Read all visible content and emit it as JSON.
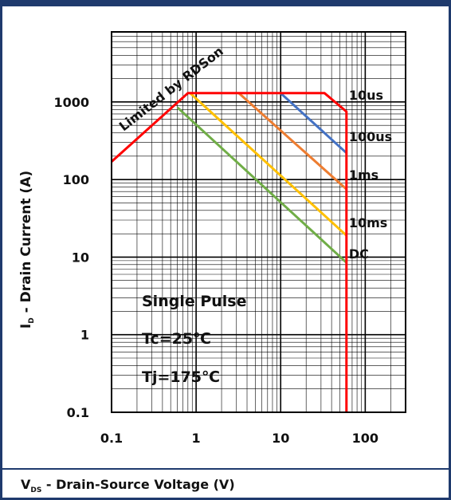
{
  "chart_data": {
    "type": "line",
    "title": "",
    "xlabel_main": "V",
    "xlabel_sub": "DS",
    "xlabel_rest": " - Drain-Source Voltage (V)",
    "ylabel_main": "I",
    "ylabel_sub": "D",
    "ylabel_rest": " - Drain Current  (A)",
    "xscale": "log",
    "yscale": "log",
    "xlim": [
      0.1,
      300
    ],
    "ylim": [
      0.1,
      8000
    ],
    "grid": true,
    "x_ticks": [
      {
        "value": 0.1,
        "label": "0.1"
      },
      {
        "value": 1,
        "label": "1"
      },
      {
        "value": 10,
        "label": "10"
      },
      {
        "value": 100,
        "label": "100"
      }
    ],
    "y_ticks": [
      {
        "value": 0.1,
        "label": "0.1"
      },
      {
        "value": 1,
        "label": "1"
      },
      {
        "value": 10,
        "label": "10"
      },
      {
        "value": 100,
        "label": "100"
      },
      {
        "value": 1000,
        "label": "1000"
      }
    ],
    "series": [
      {
        "name": "10us",
        "color": "#4472c4",
        "points": [
          [
            10,
            1300
          ],
          [
            60,
            220
          ]
        ]
      },
      {
        "name": "100us",
        "color": "#ed7d31",
        "points": [
          [
            3.2,
            1300
          ],
          [
            60,
            75
          ]
        ]
      },
      {
        "name": "1ms",
        "color": "#ffc000",
        "points": [
          [
            0.85,
            1300
          ],
          [
            60,
            19
          ]
        ]
      },
      {
        "name": "10ms",
        "color": "#70ad47",
        "points": [
          [
            0.6,
            850
          ],
          [
            60,
            8.5
          ]
        ]
      },
      {
        "name": "DC",
        "color": "#ff0000",
        "points": [
          [
            0.1,
            170
          ],
          [
            0.8,
            1300
          ],
          [
            33,
            1300
          ],
          [
            60,
            750
          ],
          [
            60,
            0.1
          ]
        ]
      }
    ],
    "limit_label": "Limited by RDSon",
    "annotations": [
      "Single Pulse",
      "Tc=25℃",
      "Tj=175℃"
    ]
  }
}
